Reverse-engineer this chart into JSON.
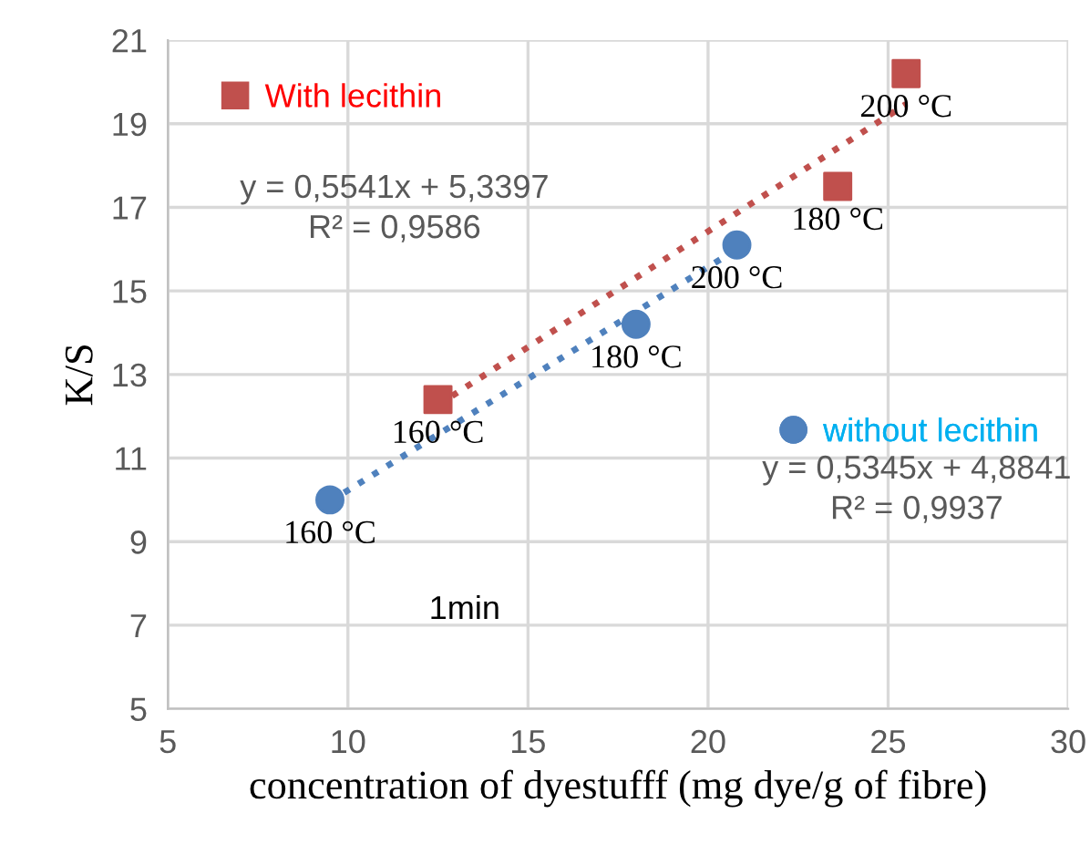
{
  "chart_data": {
    "type": "scatter",
    "xlabel": "concentration of dyestufff (mg dye/g of fibre)",
    "ylabel": "K/S",
    "xlim": [
      5,
      30
    ],
    "xticks": [
      5,
      10,
      15,
      20,
      25,
      30
    ],
    "ylim": [
      5,
      21
    ],
    "yticks": [
      5,
      7,
      9,
      11,
      13,
      15,
      17,
      19,
      21
    ],
    "grid": true,
    "legend": "top left",
    "series": [
      {
        "name": "With lecithin",
        "marker": "square",
        "color": "#c0504d",
        "x": [
          12.5,
          23.6,
          25.5
        ],
        "values": [
          12.4,
          17.5,
          20.2
        ]
      },
      {
        "name": "without lecithin",
        "marker": "circle",
        "color": "#4f81bd",
        "x": [
          9.5,
          18.0,
          20.8
        ],
        "values": [
          10.0,
          14.2,
          16.1
        ]
      },
      {
        "type": "line",
        "line_style": "dotted",
        "color": "#c0504d",
        "x": [
          12.5,
          25.5
        ],
        "values": [
          12.27,
          19.47
        ]
      },
      {
        "type": "line",
        "line_style": "dotted",
        "color": "#4f81bd",
        "x": [
          9.5,
          20.8
        ],
        "values": [
          9.96,
          16.0
        ]
      }
    ],
    "annotations": [
      "y = 0,5541x + 5,3397\nR² = 0,9586",
      "y = 0,5345x + 4,8841\nR² = 0,9937",
      "1min",
      {
        "text": "160 °C",
        "x": 12.5,
        "y": 12.4
      },
      {
        "text": "180 °C",
        "x": 23.6,
        "y": 17.5
      },
      {
        "text": "200 °C",
        "x": 25.5,
        "y": 20.2
      },
      {
        "text": "160 °C",
        "x": 9.5,
        "y": 10.0
      },
      {
        "text": "180 °C",
        "x": 18.0,
        "y": 14.2
      },
      {
        "text": "200 °C",
        "x": 20.8,
        "y": 16.1
      }
    ]
  }
}
